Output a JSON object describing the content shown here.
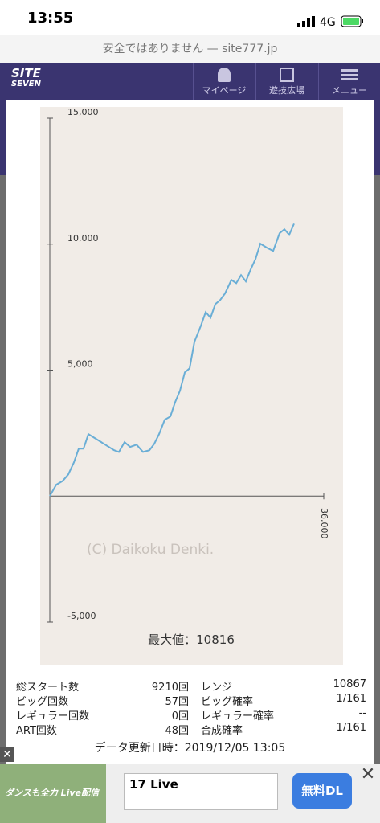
{
  "status_bar": {
    "time": "13:55",
    "network": "4G"
  },
  "url_bar": {
    "text": "安全ではありません — site777.jp"
  },
  "nav": {
    "logo_top": "SITE",
    "logo_bottom": "SEVEN",
    "items": [
      "マイページ",
      "遊技広場",
      "メニュー"
    ]
  },
  "chart_data": {
    "type": "line",
    "x": [
      0,
      845,
      1690,
      2430,
      3170,
      3800,
      4430,
      5070,
      5910,
      6760,
      7600,
      8450,
      9080,
      9820,
      10560,
      11400,
      12250,
      13090,
      13720,
      14360,
      15100,
      15840,
      16470,
      17100,
      17740,
      18370,
      19000,
      19850,
      20480,
      21120,
      21750,
      22380,
      23020,
      23860,
      24500,
      25130,
      25760,
      26400,
      27030,
      27660,
      28510,
      29350,
      30190,
      30830,
      31460,
      32090
    ],
    "series": [
      {
        "color": "#6aaed6",
        "values": [
          0,
          450,
          600,
          860,
          1340,
          1880,
          1880,
          2460,
          2300,
          2140,
          1980,
          1820,
          1750,
          2140,
          1950,
          2040,
          1750,
          1820,
          2070,
          2460,
          3030,
          3160,
          3730,
          4180,
          4910,
          5070,
          6120,
          6760,
          7300,
          7080,
          7620,
          7780,
          8040,
          8580,
          8450,
          8770,
          8520,
          9000,
          9410,
          10020,
          9860,
          9730,
          10430,
          10590,
          10370,
          10810
        ]
      }
    ],
    "xlim": [
      0,
      36000
    ],
    "xticks": [
      {
        "value": 36000,
        "label": "36,000"
      }
    ],
    "ylim": [
      -5000,
      15000
    ],
    "yticks": [
      {
        "value": -5000,
        "label": "-5,000"
      },
      {
        "value": 5000,
        "label": "5,000"
      },
      {
        "value": 10000,
        "label": "10,000"
      },
      {
        "value": 15000,
        "label": "15,000"
      }
    ],
    "watermark": "(C) Daikoku Denki.",
    "max_label": "最大値：10816"
  },
  "stats": {
    "rows": [
      [
        "総スタート数",
        "9210回",
        "レンジ",
        "10867"
      ],
      [
        "ビッグ回数",
        "57回",
        "ビッグ確率",
        "1/161"
      ],
      [
        "レギュラー回数",
        "0回",
        "レギュラー確率",
        "--"
      ],
      [
        "ART回数",
        "48回",
        "合成確率",
        "1/161"
      ]
    ]
  },
  "updated": "データ更新日時：2019/12/05 13:05",
  "ad": {
    "image_text": "ダンスも全力 Live配信",
    "title": "17 Live",
    "button": "無料DL"
  }
}
